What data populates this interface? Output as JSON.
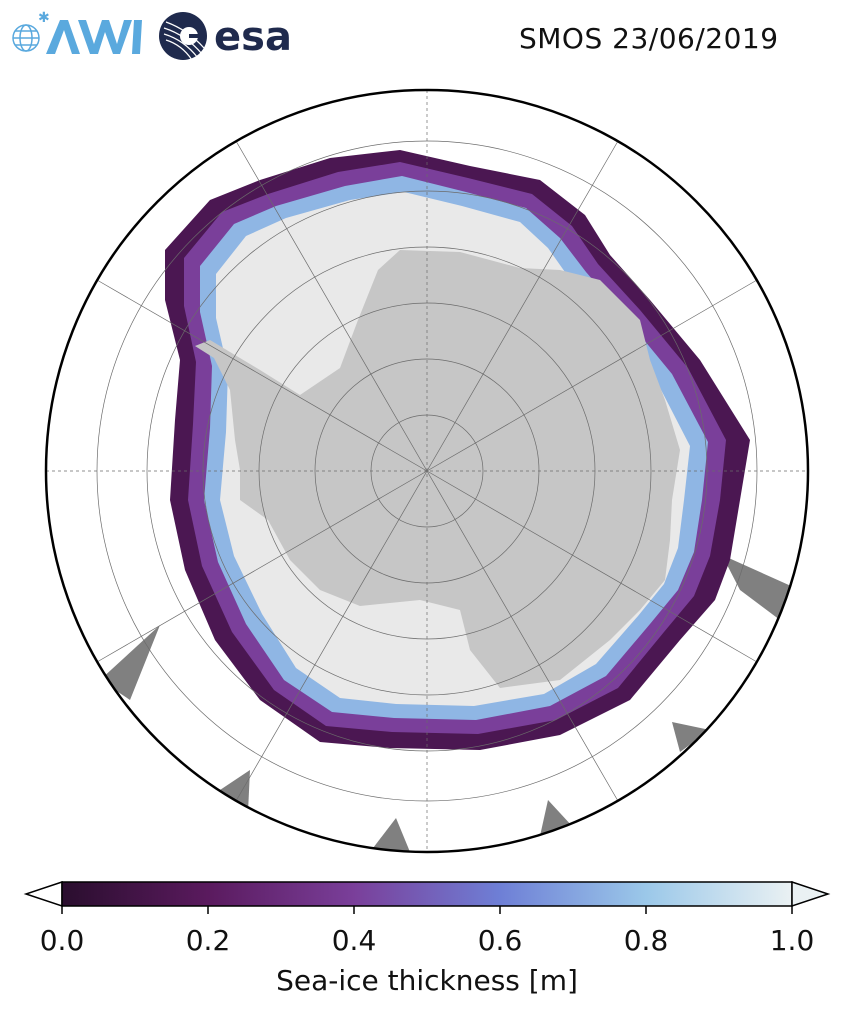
{
  "header": {
    "title": "SMOS 23/06/2019",
    "logos": {
      "left_text": "AWI",
      "right_text": "esa",
      "left_color": "#5aa9de",
      "right_color": "#1f2a4d"
    }
  },
  "map": {
    "projection": "south polar stereographic",
    "grid": true,
    "land_color": "#c6c6c6",
    "ocean_color": "#ffffff",
    "nodata_color": "#808080"
  },
  "colorbar": {
    "label": "Sea-ice thickness [m]",
    "ticks": [
      "0.0",
      "0.2",
      "0.4",
      "0.6",
      "0.8",
      "1.0"
    ],
    "range": [
      0.0,
      1.0
    ],
    "extend": "both",
    "colors": [
      "#2a0e2e",
      "#5a1a5e",
      "#7a3f9a",
      "#6e7fd6",
      "#7fb4e8",
      "#c6e2ee",
      "#eaf1f3"
    ]
  }
}
